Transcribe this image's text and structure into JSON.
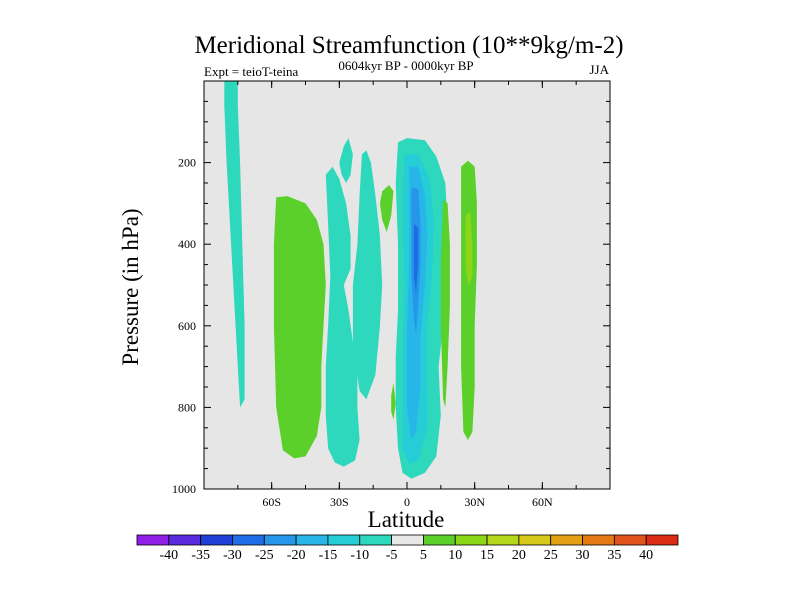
{
  "chart_data": {
    "type": "contour",
    "title": "Meridional Streamfunction (10**9kg/m-2)",
    "left_string": "Expt = teioT-teina",
    "center_string": "0604kyr BP - 0000kyr BP",
    "right_string": "JJA",
    "xlabel": "Latitude",
    "ylabel": "Pressure (in hPa)",
    "xlim": [
      -90,
      90
    ],
    "ylim": [
      1000,
      0
    ],
    "x_ticks": [
      {
        "value": -60,
        "label": "60S"
      },
      {
        "value": -30,
        "label": "30S"
      },
      {
        "value": 0,
        "label": "0"
      },
      {
        "value": 30,
        "label": "30N"
      },
      {
        "value": 60,
        "label": "60N"
      }
    ],
    "y_ticks": [
      {
        "value": 200,
        "label": "200"
      },
      {
        "value": 400,
        "label": "400"
      },
      {
        "value": 600,
        "label": "600"
      },
      {
        "value": 800,
        "label": "800"
      },
      {
        "value": 1000,
        "label": "1000"
      }
    ],
    "background_color": "#e6e6e6",
    "contour_levels": [
      -40,
      -35,
      -30,
      -25,
      -20,
      -15,
      -10,
      -5,
      5,
      10,
      15,
      20,
      25,
      30,
      35,
      40
    ],
    "colorbar_labels": [
      "-40",
      "-35",
      "-30",
      "-25",
      "-20",
      "-15",
      "-10",
      "-5",
      "5",
      "10",
      "15",
      "20",
      "25",
      "30",
      "35",
      "40"
    ],
    "colorbar_colors": [
      "#8f1ee6",
      "#5a2adf",
      "#1f3fd8",
      "#1f6de6",
      "#2596ea",
      "#28b6e8",
      "#25cdd6",
      "#2ed8bc",
      "#e8e8e8",
      "#5cd02a",
      "#8cd618",
      "#b6d61b",
      "#d7c91a",
      "#e4a015",
      "#e57a14",
      "#e2521c",
      "#dc2c18"
    ],
    "regions": [
      {
        "level": -5,
        "color": "#2ed8bc",
        "points": [
          [
            -81,
            0
          ],
          [
            -75,
            0
          ],
          [
            -75,
            60
          ],
          [
            -74,
            200
          ],
          [
            -73,
            400
          ],
          [
            -72,
            600
          ],
          [
            -72,
            780
          ],
          [
            -74,
            800
          ],
          [
            -75,
            700
          ],
          [
            -78,
            400
          ],
          [
            -80,
            200
          ],
          [
            -81,
            60
          ]
        ]
      },
      {
        "level": 5,
        "color": "#5cd02a",
        "points": [
          [
            -58,
            285
          ],
          [
            -53,
            282
          ],
          [
            -45,
            300
          ],
          [
            -40,
            340
          ],
          [
            -37,
            400
          ],
          [
            -36,
            500
          ],
          [
            -37,
            600
          ],
          [
            -38,
            700
          ],
          [
            -38,
            800
          ],
          [
            -40,
            870
          ],
          [
            -45,
            920
          ],
          [
            -50,
            925
          ],
          [
            -55,
            905
          ],
          [
            -58,
            800
          ],
          [
            -59,
            600
          ],
          [
            -59,
            400
          ]
        ]
      },
      {
        "level": -5,
        "color": "#2ed8bc",
        "points": [
          [
            -36,
            230
          ],
          [
            -33,
            210
          ],
          [
            -30,
            240
          ],
          [
            -27,
            300
          ],
          [
            -25,
            380
          ],
          [
            -25,
            460
          ],
          [
            -28,
            500
          ],
          [
            -26,
            560
          ],
          [
            -24,
            640
          ],
          [
            -22,
            700
          ],
          [
            -22,
            800
          ],
          [
            -21,
            880
          ],
          [
            -23,
            930
          ],
          [
            -28,
            945
          ],
          [
            -32,
            935
          ],
          [
            -35,
            900
          ],
          [
            -36,
            820
          ],
          [
            -36,
            700
          ],
          [
            -35,
            600
          ],
          [
            -34,
            480
          ],
          [
            -35,
            350
          ]
        ]
      },
      {
        "level": -5,
        "color": "#2ed8bc",
        "points": [
          [
            -30,
            200
          ],
          [
            -28,
            160
          ],
          [
            -26,
            140
          ],
          [
            -24,
            180
          ],
          [
            -25,
            230
          ],
          [
            -27,
            250
          ],
          [
            -29,
            230
          ]
        ]
      },
      {
        "level": -5,
        "color": "#2ed8bc",
        "points": [
          [
            -20,
            180
          ],
          [
            -18,
            170
          ],
          [
            -16,
            200
          ],
          [
            -14,
            280
          ],
          [
            -12,
            380
          ],
          [
            -11,
            500
          ],
          [
            -12,
            600
          ],
          [
            -14,
            720
          ],
          [
            -18,
            780
          ],
          [
            -21,
            760
          ],
          [
            -24,
            650
          ],
          [
            -24,
            500
          ],
          [
            -22,
            400
          ],
          [
            -21,
            280
          ]
        ]
      },
      {
        "level": 5,
        "color": "#5cd02a",
        "points": [
          [
            -11,
            270
          ],
          [
            -8,
            255
          ],
          [
            -6,
            270
          ],
          [
            -7,
            330
          ],
          [
            -9,
            370
          ],
          [
            -11,
            340
          ],
          [
            -12,
            300
          ]
        ]
      },
      {
        "level": 5,
        "color": "#5cd02a",
        "points": [
          [
            -7,
            770
          ],
          [
            -6,
            740
          ],
          [
            -5,
            790
          ],
          [
            -6,
            830
          ],
          [
            -7,
            810
          ]
        ]
      },
      {
        "level": -5,
        "color": "#2ed8bc",
        "points": [
          [
            -4,
            150
          ],
          [
            0,
            140
          ],
          [
            8,
            145
          ],
          [
            13,
            185
          ],
          [
            17,
            250
          ],
          [
            18,
            350
          ],
          [
            18,
            470
          ],
          [
            16,
            600
          ],
          [
            14,
            700
          ],
          [
            15,
            820
          ],
          [
            13,
            920
          ],
          [
            8,
            960
          ],
          [
            2,
            975
          ],
          [
            -2,
            960
          ],
          [
            -4,
            900
          ],
          [
            -5,
            800
          ],
          [
            -5,
            680
          ],
          [
            -4,
            560
          ],
          [
            -4,
            400
          ],
          [
            -5,
            250
          ]
        ]
      },
      {
        "level": -10,
        "color": "#25cdd6",
        "points": [
          [
            -1,
            180
          ],
          [
            5,
            180
          ],
          [
            10,
            240
          ],
          [
            12,
            350
          ],
          [
            11,
            480
          ],
          [
            9,
            600
          ],
          [
            9,
            700
          ],
          [
            9,
            850
          ],
          [
            5,
            930
          ],
          [
            1,
            940
          ],
          [
            -2,
            900
          ],
          [
            -2,
            700
          ],
          [
            -1,
            500
          ],
          [
            -2,
            300
          ]
        ]
      },
      {
        "level": -15,
        "color": "#28b6e8",
        "points": [
          [
            1,
            210
          ],
          [
            5,
            210
          ],
          [
            8,
            280
          ],
          [
            9,
            380
          ],
          [
            8,
            500
          ],
          [
            6,
            620
          ],
          [
            6,
            750
          ],
          [
            4,
            860
          ],
          [
            2,
            880
          ],
          [
            0,
            800
          ],
          [
            0,
            600
          ],
          [
            1,
            450
          ]
        ]
      },
      {
        "level": -20,
        "color": "#2596ea",
        "points": [
          [
            2,
            260
          ],
          [
            5,
            265
          ],
          [
            6,
            350
          ],
          [
            6,
            450
          ],
          [
            5,
            550
          ],
          [
            4,
            620
          ],
          [
            3,
            580
          ],
          [
            2,
            480
          ],
          [
            2,
            350
          ]
        ]
      },
      {
        "level": -25,
        "color": "#1f6de6",
        "points": [
          [
            3,
            350
          ],
          [
            5,
            360
          ],
          [
            5,
            450
          ],
          [
            4,
            520
          ],
          [
            3,
            480
          ]
        ]
      },
      {
        "level": 5,
        "color": "#5cd02a",
        "points": [
          [
            16,
            290
          ],
          [
            18,
            300
          ],
          [
            19,
            400
          ],
          [
            19,
            550
          ],
          [
            18,
            700
          ],
          [
            17,
            800
          ],
          [
            16,
            780
          ],
          [
            15,
            600
          ],
          [
            15,
            450
          ]
        ]
      },
      {
        "level": 5,
        "color": "#5cd02a",
        "points": [
          [
            24,
            210
          ],
          [
            27,
            195
          ],
          [
            30,
            210
          ],
          [
            31,
            300
          ],
          [
            31,
            450
          ],
          [
            30,
            600
          ],
          [
            30,
            750
          ],
          [
            29,
            860
          ],
          [
            27,
            880
          ],
          [
            25,
            860
          ],
          [
            24,
            700
          ],
          [
            24,
            500
          ],
          [
            24,
            330
          ]
        ]
      },
      {
        "level": 10,
        "color": "#8cd618",
        "points": [
          [
            26,
            330
          ],
          [
            28,
            320
          ],
          [
            29,
            400
          ],
          [
            29,
            480
          ],
          [
            27,
            500
          ],
          [
            26,
            450
          ]
        ]
      }
    ]
  }
}
